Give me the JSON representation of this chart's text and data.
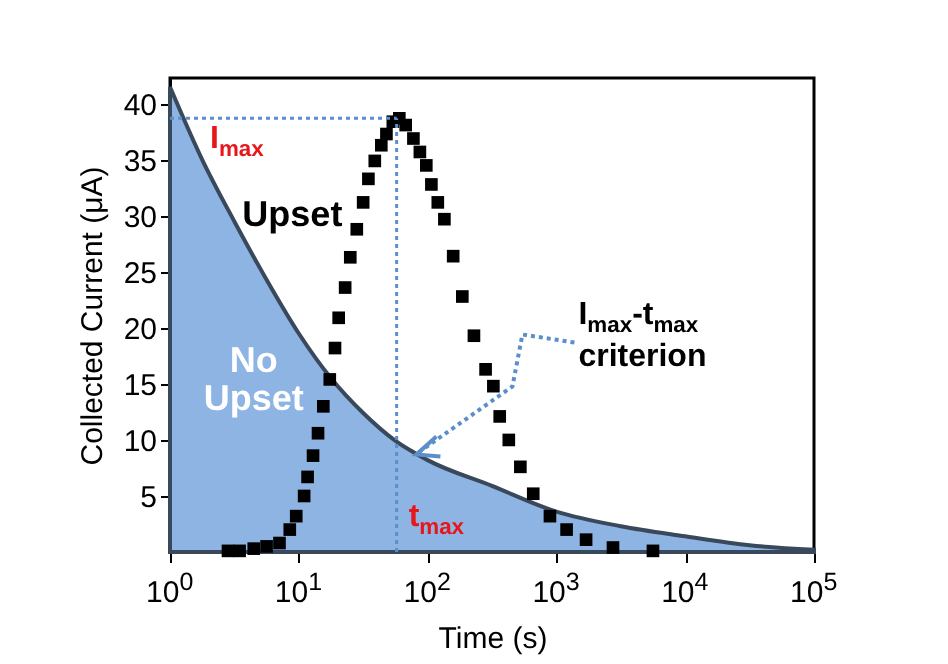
{
  "chart_data": {
    "type": "scatter",
    "xlabel": "Time (s)",
    "ylabel": "Collected Current (μA)",
    "log": "x",
    "grid": false,
    "xlim": [
      1,
      100000
    ],
    "ylim": [
      0,
      42.3
    ],
    "xticks": [
      {
        "value": 1,
        "label": "10$^{0}$"
      },
      {
        "value": 10,
        "label": "10$^{1}$"
      },
      {
        "value": 100,
        "label": "10$^{2}$"
      },
      {
        "value": 1000,
        "label": "10$^{3}$"
      },
      {
        "value": 10000,
        "label": "10$^{4}$"
      },
      {
        "value": 100000,
        "label": "10$^{5}$"
      }
    ],
    "yticks": [
      5,
      10,
      15,
      20,
      25,
      30,
      35,
      40
    ],
    "series": [
      {
        "type": "area",
        "color": "#8eb4e3",
        "x": [
          1,
          1.78,
          3.16,
          5.62,
          10,
          17.8,
          31.6,
          55,
          100,
          316,
          1000,
          3160,
          10000,
          31600,
          100000
        ],
        "values": [
          41.5,
          35,
          29.5,
          24.3,
          19.5,
          15.5,
          12.4,
          10,
          8.2,
          5.9,
          3.6,
          2.3,
          1.4,
          0.6,
          0.2
        ]
      },
      {
        "marker": "square",
        "color": "#000000",
        "x": [
          2.82,
          3.47,
          4.47,
          5.62,
          7.08,
          8.51,
          9.55,
          11.0,
          11.7,
          12.9,
          14.1,
          15.5,
          17.4,
          19.1,
          20.4,
          22.9,
          25.1,
          28.2,
          31.6,
          34.7,
          38.9,
          43.7,
          47.9,
          53.7,
          60.3,
          67.6,
          77.6,
          87.1,
          97.7,
          107,
          120,
          135,
          158,
          186,
          229,
          282,
          324,
          363,
          427,
          525,
          661,
          891,
          1200,
          1700,
          2750,
          5620
        ],
        "values": [
          0.1,
          0.1,
          0.3,
          0.5,
          0.8,
          2.0,
          3.2,
          5.0,
          6.7,
          8.6,
          10.6,
          13.0,
          15.4,
          18.2,
          20.9,
          23.6,
          26.3,
          28.8,
          31.2,
          33.3,
          34.9,
          36.3,
          37.3,
          38.4,
          38.7,
          38.1,
          36.9,
          35.7,
          34.5,
          32.8,
          31.2,
          29.7,
          26.4,
          22.8,
          19.3,
          16.3,
          14.8,
          12.1,
          10.0,
          7.6,
          5.2,
          3.2,
          2.0,
          1.1,
          0.4,
          0.1
        ]
      }
    ],
    "ref_lines": [
      {
        "axis": "y",
        "value": 38.7,
        "label": "I$_{max}$",
        "color": "#5b8fc9",
        "line_style": "dotted"
      },
      {
        "axis": "x",
        "value": 57.5,
        "label": "t$_{max}$",
        "color": "#5b8fc9",
        "line_style": "dotted"
      }
    ],
    "annotations": [
      "Upset",
      "No Upset",
      {
        "text": "I$_{max}$-t$_{max}$ criterion",
        "x": 79,
        "y": 8.7
      }
    ]
  }
}
